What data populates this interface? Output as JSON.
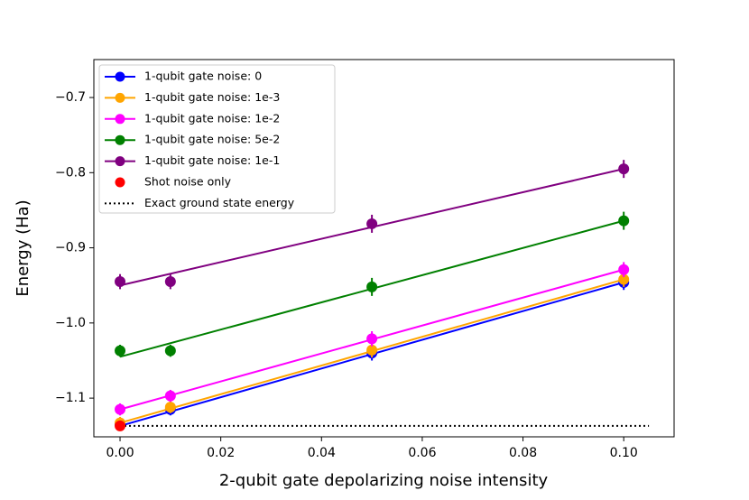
{
  "chart_data": {
    "type": "line",
    "xlabel": "2-qubit gate depolarizing noise intensity",
    "ylabel": "Energy (Ha)",
    "xlim": [
      -0.0052,
      0.11
    ],
    "ylim": [
      -1.1515,
      -0.6495
    ],
    "xticks": [
      {
        "value": 0,
        "label": "0.00"
      },
      {
        "value": 0.02,
        "label": "0.02"
      },
      {
        "value": 0.04,
        "label": "0.04"
      },
      {
        "value": 0.06,
        "label": "0.06"
      },
      {
        "value": 0.08,
        "label": "0.08"
      },
      {
        "value": 0.1,
        "label": "0.10"
      }
    ],
    "yticks": [
      {
        "value": -1.1,
        "label": "−1.1"
      },
      {
        "value": -1.0,
        "label": "−1.0"
      },
      {
        "value": -0.9,
        "label": "−0.9"
      },
      {
        "value": -0.8,
        "label": "−0.8"
      },
      {
        "value": -0.7,
        "label": "−0.7"
      }
    ],
    "legend": "upper left",
    "x": [
      0,
      0.01,
      0.05,
      0.1
    ],
    "fit_x": [
      0,
      0.1
    ],
    "series": [
      {
        "name": "1-qubit gate noise: 0",
        "color": "#0000ff",
        "values": [
          -1.135,
          -1.115,
          -1.04,
          -0.946
        ],
        "errors": [
          0.008,
          0.008,
          0.01,
          0.01
        ],
        "fit_values": [
          -1.137,
          -0.946
        ]
      },
      {
        "name": "1-qubit gate noise: 1e-3",
        "color": "#ffa500",
        "values": [
          -1.133,
          -1.112,
          -1.036,
          -0.942
        ],
        "errors": [
          0.008,
          0.008,
          0.01,
          0.01
        ],
        "fit_values": [
          -1.133,
          -0.942
        ]
      },
      {
        "name": "1-qubit gate noise: 1e-2",
        "color": "#ff00ff",
        "values": [
          -1.115,
          -1.097,
          -1.021,
          -0.929
        ],
        "errors": [
          0.008,
          0.008,
          0.01,
          0.01
        ],
        "fit_values": [
          -1.115,
          -0.929
        ]
      },
      {
        "name": "1-qubit gate noise: 5e-2",
        "color": "#008000",
        "values": [
          -1.037,
          -1.037,
          -0.952,
          -0.864
        ],
        "errors": [
          0.008,
          0.008,
          0.012,
          0.012
        ],
        "fit_values": [
          -1.045,
          -0.864
        ]
      },
      {
        "name": "1-qubit gate noise: 1e-1",
        "color": "#800080",
        "values": [
          -0.945,
          -0.945,
          -0.868,
          -0.795
        ],
        "errors": [
          0.01,
          0.01,
          0.012,
          0.012
        ],
        "fit_values": [
          -0.95,
          -0.795
        ]
      }
    ],
    "shot_noise": {
      "name": "Shot noise only",
      "color": "#ff0000",
      "x": 0,
      "value": -1.137
    },
    "reference": {
      "name": "Exact ground state energy",
      "color": "#000000",
      "x": [
        0,
        0.105
      ],
      "value": -1.137
    }
  }
}
